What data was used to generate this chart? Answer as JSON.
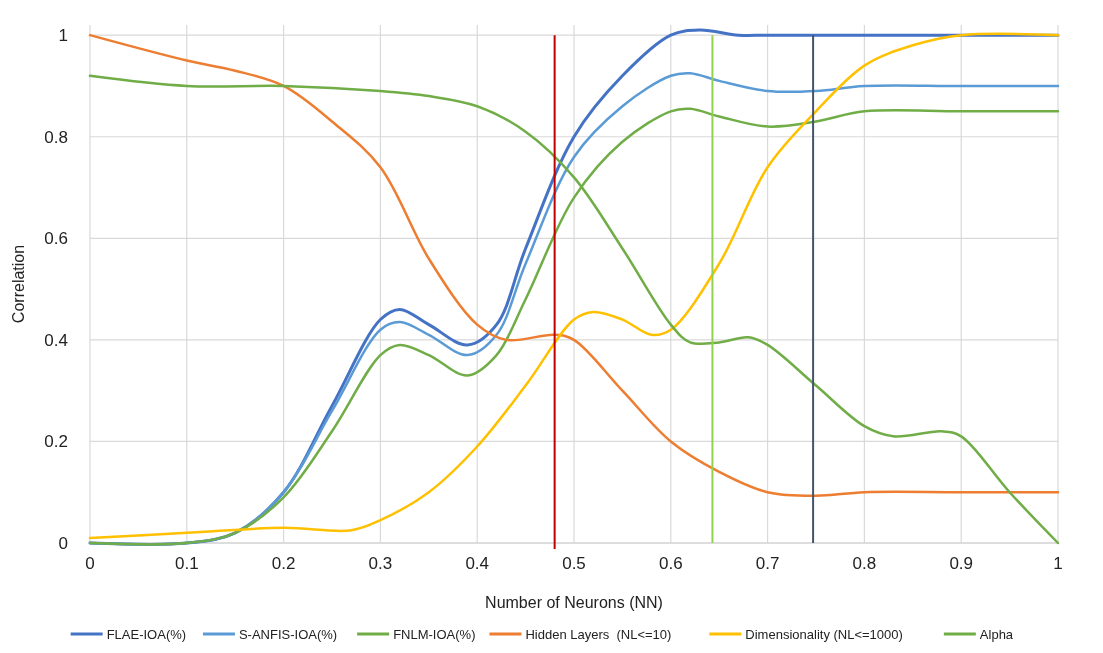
{
  "chart_data": {
    "type": "line",
    "xlabel": "Number of Neurons (NN)",
    "ylabel": "Correlation",
    "xlim": [
      0,
      1
    ],
    "ylim": [
      0,
      1.02
    ],
    "xticks": [
      0,
      0.1,
      0.2,
      0.3,
      0.4,
      0.5,
      0.6,
      0.7,
      0.8,
      0.9,
      1
    ],
    "yticks": [
      0,
      0.2,
      0.4,
      0.6,
      0.8,
      1
    ],
    "grid": true,
    "legend": "bottom",
    "marker": "none",
    "line_style": "solid",
    "series": [
      {
        "name": "FLAE-IOA(%)",
        "color": "#4472c4",
        "x": [
          0,
          0.1,
          0.15,
          0.2,
          0.25,
          0.3,
          0.32,
          0.35,
          0.39,
          0.42,
          0.45,
          0.5,
          0.55,
          0.6,
          0.63,
          0.67,
          0.7,
          0.8,
          0.9,
          1
        ],
        "values": [
          0,
          0,
          0.02,
          0.1,
          0.27,
          0.44,
          0.46,
          0.43,
          0.39,
          0.43,
          0.58,
          0.8,
          0.92,
          1.0,
          1.01,
          1.0,
          1.0,
          1.0,
          1.0,
          1.0
        ]
      },
      {
        "name": "S-ANFIS-IOA(%)",
        "color": "#5b9bd5",
        "x": [
          0,
          0.1,
          0.15,
          0.2,
          0.25,
          0.3,
          0.32,
          0.35,
          0.39,
          0.42,
          0.45,
          0.5,
          0.55,
          0.6,
          0.62,
          0.65,
          0.7,
          0.75,
          0.8,
          0.9,
          1
        ],
        "values": [
          0,
          0,
          0.02,
          0.1,
          0.26,
          0.42,
          0.435,
          0.41,
          0.37,
          0.41,
          0.55,
          0.76,
          0.86,
          0.92,
          0.925,
          0.91,
          0.89,
          0.89,
          0.9,
          0.9,
          0.9
        ]
      },
      {
        "name": "FNLM-IOA(%)",
        "color": "#70ad47",
        "x": [
          0,
          0.1,
          0.15,
          0.2,
          0.25,
          0.3,
          0.32,
          0.35,
          0.39,
          0.42,
          0.45,
          0.5,
          0.55,
          0.6,
          0.62,
          0.65,
          0.7,
          0.75,
          0.8,
          0.9,
          1
        ],
        "values": [
          0,
          0,
          0.02,
          0.09,
          0.22,
          0.37,
          0.39,
          0.37,
          0.33,
          0.37,
          0.48,
          0.68,
          0.79,
          0.85,
          0.855,
          0.84,
          0.82,
          0.83,
          0.85,
          0.85,
          0.85
        ]
      },
      {
        "name": "Hidden Layers  (NL<=10)",
        "color": "#ed7d31",
        "x": [
          0,
          0.1,
          0.15,
          0.2,
          0.25,
          0.3,
          0.35,
          0.4,
          0.43,
          0.48,
          0.5,
          0.55,
          0.6,
          0.65,
          0.7,
          0.75,
          0.8,
          0.9,
          1
        ],
        "values": [
          1,
          0.95,
          0.93,
          0.9,
          0.83,
          0.74,
          0.56,
          0.43,
          0.4,
          0.41,
          0.4,
          0.3,
          0.2,
          0.14,
          0.1,
          0.093,
          0.1,
          0.1,
          0.1
        ]
      },
      {
        "name": "Dimensionality (NL<=1000)",
        "color": "#ffc000",
        "x": [
          0,
          0.1,
          0.2,
          0.27,
          0.3,
          0.35,
          0.4,
          0.45,
          0.5,
          0.52,
          0.55,
          0.58,
          0.6,
          0.65,
          0.7,
          0.75,
          0.8,
          0.85,
          0.9,
          1
        ],
        "values": [
          0.01,
          0.02,
          0.03,
          0.025,
          0.045,
          0.1,
          0.19,
          0.31,
          0.44,
          0.455,
          0.44,
          0.41,
          0.42,
          0.55,
          0.74,
          0.85,
          0.94,
          0.98,
          1.0,
          1.0
        ]
      },
      {
        "name": "Alpha",
        "color": "#70ad47",
        "x": [
          0,
          0.1,
          0.2,
          0.3,
          0.35,
          0.4,
          0.45,
          0.5,
          0.55,
          0.6,
          0.62,
          0.65,
          0.68,
          0.7,
          0.75,
          0.8,
          0.83,
          0.88,
          0.9,
          0.95,
          1
        ],
        "values": [
          0.92,
          0.9,
          0.9,
          0.89,
          0.88,
          0.86,
          0.81,
          0.72,
          0.58,
          0.43,
          0.395,
          0.395,
          0.405,
          0.39,
          0.31,
          0.23,
          0.21,
          0.22,
          0.21,
          0.1,
          0
        ]
      }
    ],
    "ref_lines": [
      {
        "axis": "x",
        "value": 0.48,
        "color": "#c00000"
      },
      {
        "axis": "x",
        "value": 0.643,
        "color": "#92d050"
      },
      {
        "axis": "x",
        "value": 0.747,
        "color": "#44546a"
      }
    ]
  }
}
